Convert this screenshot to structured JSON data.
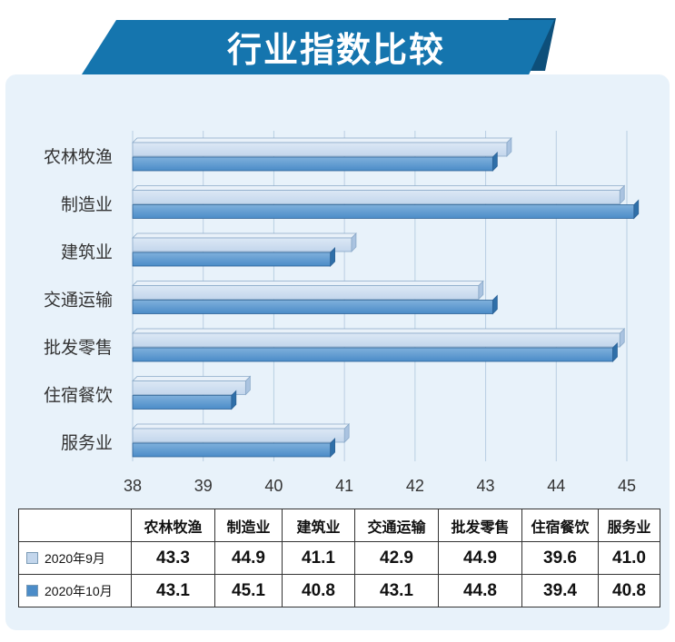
{
  "title": "行业指数比较",
  "colors": {
    "banner": "#1575ae",
    "banner_dark": "#0d4f7a",
    "panel": "#e8f2fa",
    "sept_bar": "#c3d6ec",
    "oct_bar": "#4b8cc8"
  },
  "chart_data": {
    "type": "bar",
    "orientation": "horizontal",
    "categories": [
      "农林牧渔",
      "制造业",
      "建筑业",
      "交通运输",
      "批发零售",
      "住宿餐饮",
      "服务业"
    ],
    "series": [
      {
        "name": "2020年9月",
        "values": [
          43.3,
          44.9,
          41.1,
          42.9,
          44.9,
          39.6,
          41.0
        ]
      },
      {
        "name": "2020年10月",
        "values": [
          43.1,
          45.1,
          40.8,
          43.1,
          44.8,
          39.4,
          40.8
        ]
      }
    ],
    "xlim": [
      38,
      45
    ],
    "xticks": [
      "38",
      "39",
      "40",
      "41",
      "42",
      "43",
      "44",
      "45"
    ],
    "grid": true,
    "legend": "table"
  },
  "table": {
    "headers": [
      "农林牧渔",
      "制造业",
      "建筑业",
      "交通运输",
      "批发零售",
      "住宿餐饮",
      "服务业"
    ],
    "rows": [
      {
        "label": "2020年9月",
        "values": [
          "43.3",
          "44.9",
          "41.1",
          "42.9",
          "44.9",
          "39.6",
          "41.0"
        ]
      },
      {
        "label": "2020年10月",
        "values": [
          "43.1",
          "45.1",
          "40.8",
          "43.1",
          "44.8",
          "39.4",
          "40.8"
        ]
      }
    ]
  }
}
